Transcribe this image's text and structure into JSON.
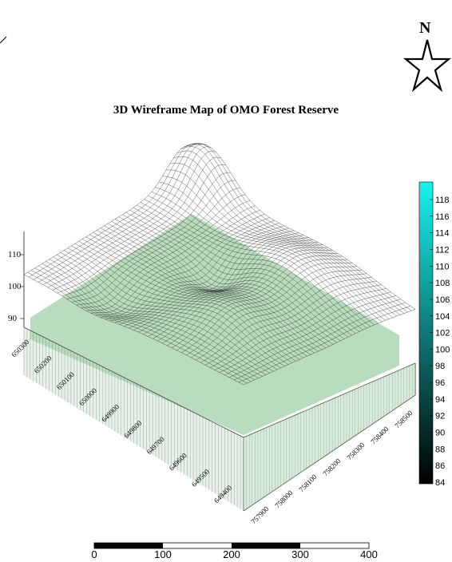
{
  "title": "3D Wireframe Map of OMO Forest Reserve",
  "north_label": "N",
  "colors": {
    "surface_fill": "#b9dcbf",
    "wire": "#000000",
    "legend_top": "#19f2f0",
    "legend_bottom": "#000000"
  },
  "z_axis": {
    "ticks": [
      "110",
      "100",
      "90"
    ]
  },
  "y_axis": {
    "ticks": [
      "650300",
      "650200",
      "650100",
      "650000",
      "649900",
      "649800",
      "649700",
      "649600",
      "649500",
      "649400"
    ]
  },
  "x_axis": {
    "ticks": [
      "757900",
      "758000",
      "758100",
      "758200",
      "758300",
      "758400",
      "758500"
    ]
  },
  "legend": {
    "ticks": [
      "118",
      "116",
      "114",
      "112",
      "110",
      "108",
      "106",
      "104",
      "102",
      "100",
      "98",
      "96",
      "94",
      "92",
      "90",
      "88",
      "86",
      "84"
    ]
  },
  "scale_bar": {
    "ticks": [
      "0",
      "100",
      "200",
      "300",
      "400"
    ]
  }
}
